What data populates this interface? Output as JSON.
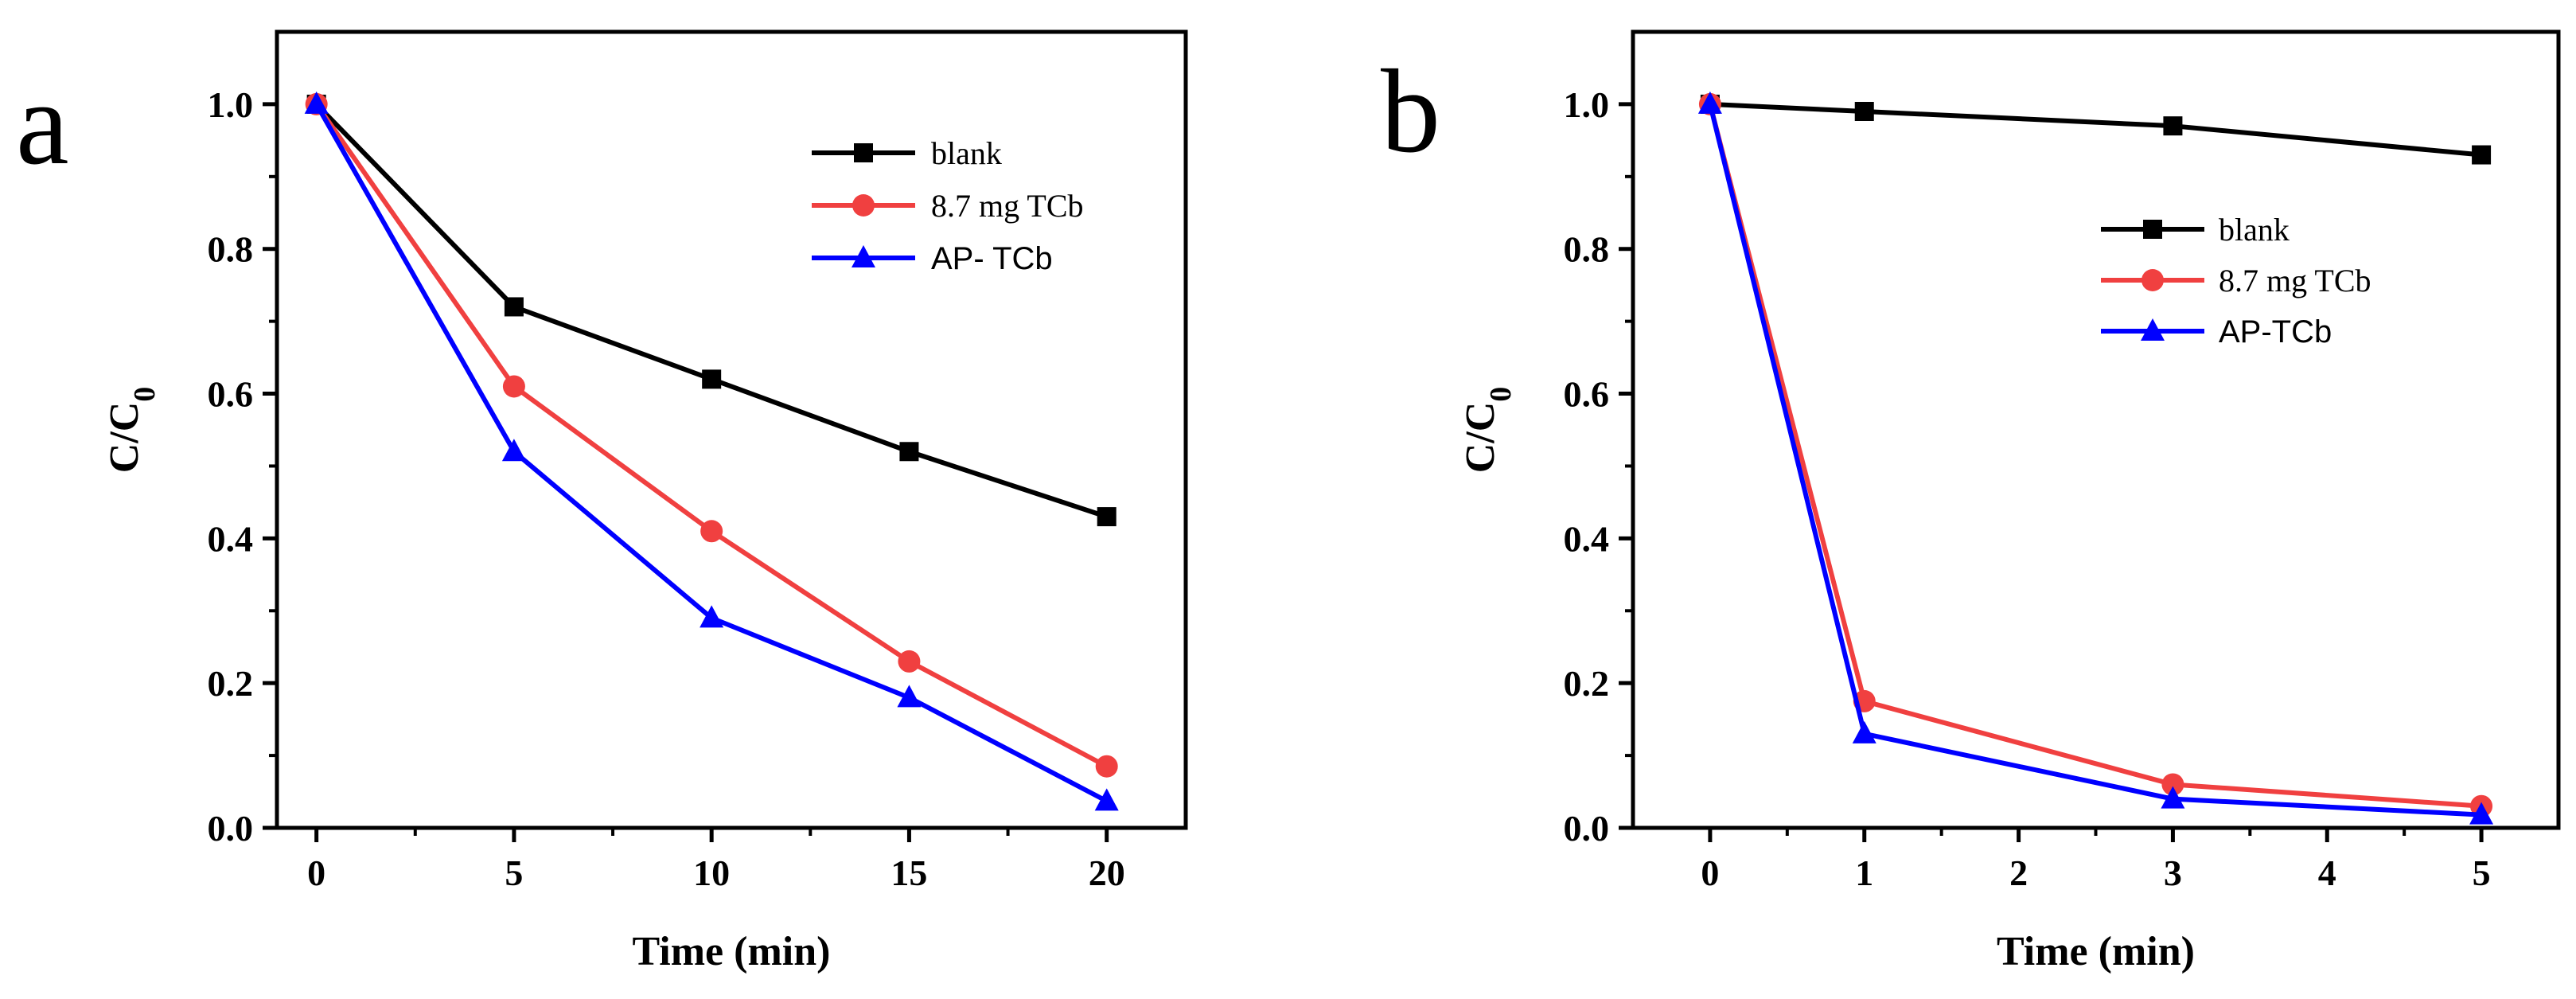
{
  "chart_data": [
    {
      "type": "line",
      "panel_label": "a",
      "xlabel": "Time (min)",
      "ylabel": "C/C0",
      "xlim": [
        -1,
        22
      ],
      "ylim": [
        0,
        1.1
      ],
      "xticks": [
        0,
        5,
        10,
        15,
        20
      ],
      "yticks": [
        0.0,
        0.2,
        0.4,
        0.6,
        0.8,
        1.0
      ],
      "ytick_labels": [
        "0.0",
        "0.2",
        "0.4",
        "0.6",
        "0.8",
        "1.0"
      ],
      "grid": false,
      "legend_position": "top-right",
      "series": [
        {
          "name": "blank",
          "color": "#000000",
          "marker": "square",
          "x": [
            0,
            5,
            10,
            15,
            20
          ],
          "y": [
            1.0,
            0.72,
            0.62,
            0.52,
            0.43
          ]
        },
        {
          "name": "8.7 mg TCb",
          "color": "#f04040",
          "marker": "circle",
          "x": [
            0,
            5,
            10,
            15,
            20
          ],
          "y": [
            1.0,
            0.61,
            0.41,
            0.23,
            0.085
          ]
        },
        {
          "name": "AP- TCb",
          "color": "#0000ff",
          "marker": "triangle",
          "x": [
            0,
            5,
            10,
            15,
            20
          ],
          "y": [
            1.0,
            0.52,
            0.29,
            0.18,
            0.037
          ]
        }
      ]
    },
    {
      "type": "line",
      "panel_label": "b",
      "xlabel": "Time (min)",
      "ylabel": "C/C0",
      "xlim": [
        -0.5,
        5.5
      ],
      "ylim": [
        0,
        1.1
      ],
      "xticks": [
        0,
        1,
        2,
        3,
        4,
        5
      ],
      "yticks": [
        0.0,
        0.2,
        0.4,
        0.6,
        0.8,
        1.0
      ],
      "ytick_labels": [
        "0.0",
        "0.2",
        "0.4",
        "0.6",
        "0.8",
        "1.0"
      ],
      "grid": false,
      "legend_position": "upper-right",
      "series": [
        {
          "name": "blank",
          "color": "#000000",
          "marker": "square",
          "x": [
            0,
            1,
            3,
            5
          ],
          "y": [
            1.0,
            0.99,
            0.97,
            0.93
          ]
        },
        {
          "name": "8.7 mg TCb",
          "color": "#f04040",
          "marker": "circle",
          "x": [
            0,
            1,
            3,
            5
          ],
          "y": [
            1.0,
            0.175,
            0.06,
            0.03
          ]
        },
        {
          "name": "AP-TCb",
          "color": "#0000ff",
          "marker": "triangle",
          "x": [
            0,
            1,
            3,
            5
          ],
          "y": [
            1.0,
            0.13,
            0.04,
            0.018
          ]
        }
      ]
    }
  ]
}
